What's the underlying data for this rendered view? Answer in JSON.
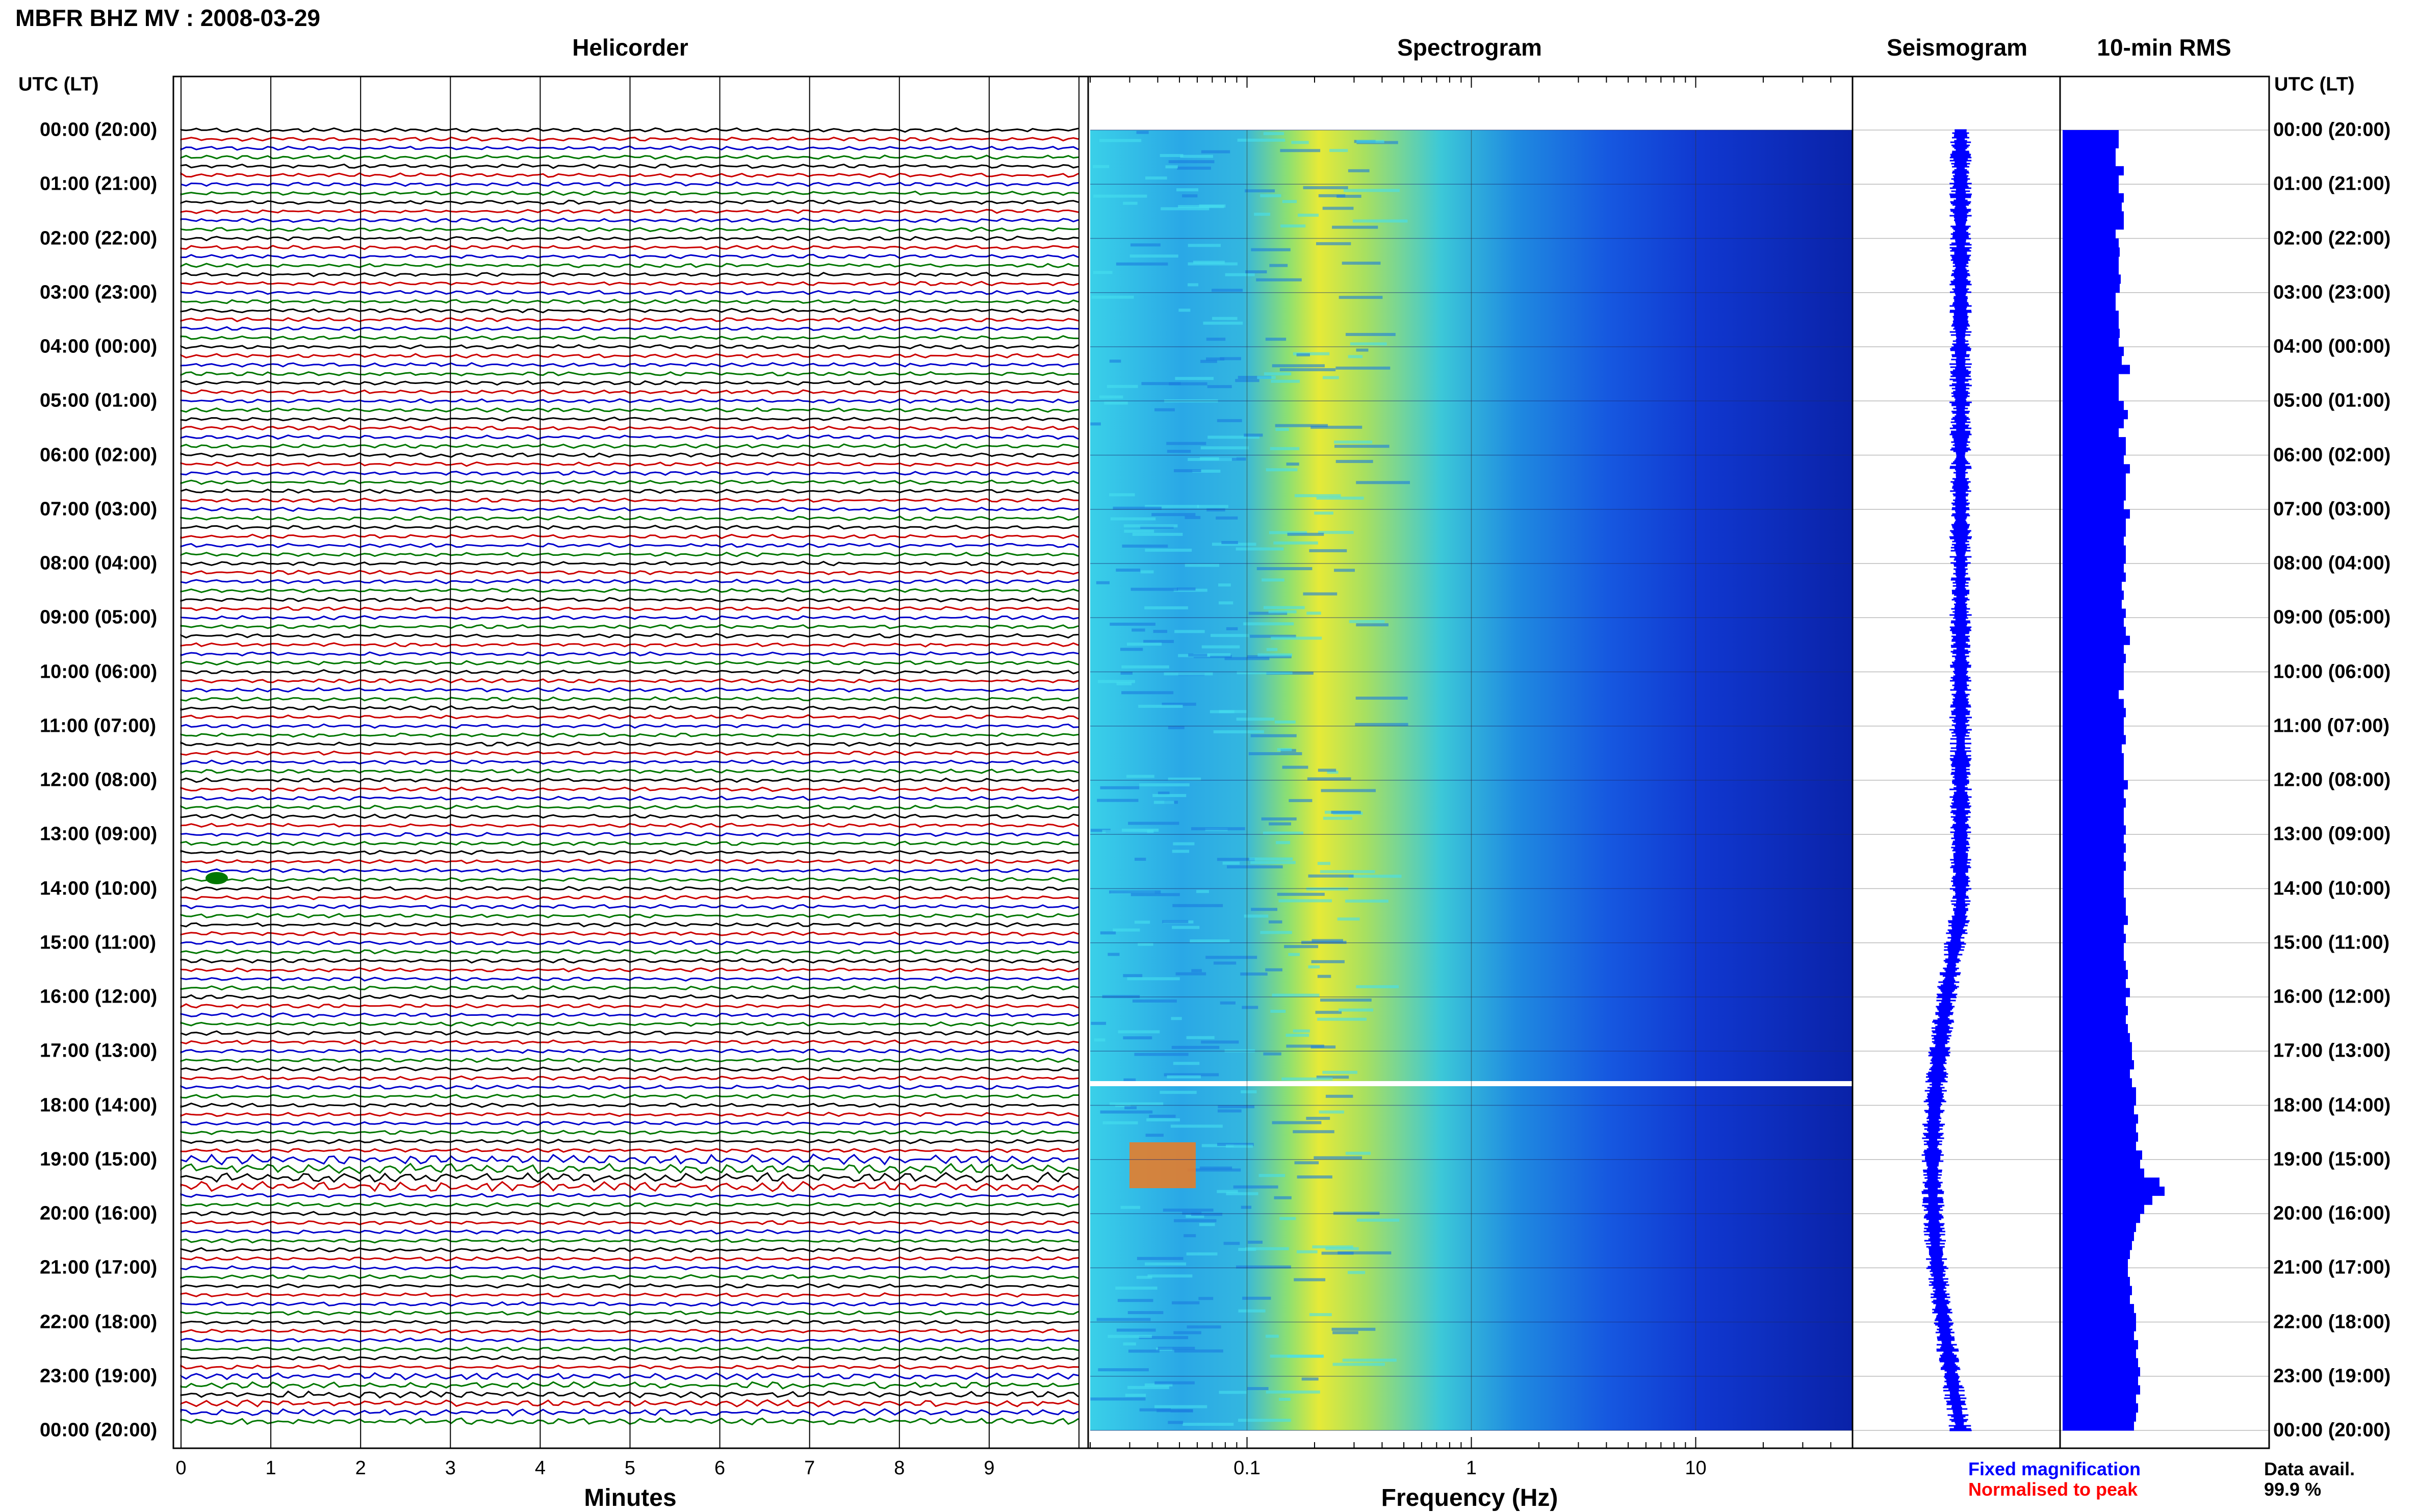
{
  "title": "MBFR BHZ MV : 2008-03-29",
  "panels": {
    "helicorder": "Helicorder",
    "spectrogram": "Spectrogram",
    "seismogram": "Seismogram",
    "rms": "10-min RMS"
  },
  "time_axis_label": "UTC (LT)",
  "time_labels": [
    "00:00 (20:00)",
    "01:00 (21:00)",
    "02:00 (22:00)",
    "03:00 (23:00)",
    "04:00 (00:00)",
    "05:00 (01:00)",
    "06:00 (02:00)",
    "07:00 (03:00)",
    "08:00 (04:00)",
    "09:00 (05:00)",
    "10:00 (06:00)",
    "11:00 (07:00)",
    "12:00 (08:00)",
    "13:00 (09:00)",
    "14:00 (10:00)",
    "15:00 (11:00)",
    "16:00 (12:00)",
    "17:00 (13:00)",
    "18:00 (14:00)",
    "19:00 (15:00)",
    "20:00 (16:00)",
    "21:00 (17:00)",
    "22:00 (18:00)",
    "23:00 (19:00)",
    "00:00 (20:00)"
  ],
  "helicorder_axis": {
    "label": "Minutes",
    "ticks": [
      "0",
      "1",
      "2",
      "3",
      "4",
      "5",
      "6",
      "7",
      "8",
      "9"
    ],
    "trace_colors": [
      "#000000",
      "#cc0000",
      "#0000cc",
      "#007700"
    ]
  },
  "spectrogram_axis": {
    "label": "Frequency (Hz)",
    "ticks": [
      "0.1",
      "1",
      "10"
    ],
    "scale": "log"
  },
  "legend": {
    "fixed": "Fixed magnification",
    "fixed_color": "#0000ff",
    "normalised": "Normalised to peak",
    "normalised_color": "#ff0000"
  },
  "data_avail": {
    "label": "Data avail.",
    "value": "99.9 %"
  },
  "chart_data": [
    {
      "type": "line",
      "title": "Helicorder",
      "xlabel": "Minutes",
      "xlim": [
        0,
        10
      ],
      "description_rows": "one 10-min trace per row, 144 rows, cycling black/red/blue/green"
    },
    {
      "type": "heatmap",
      "title": "Spectrogram",
      "xlabel": "Frequency (Hz)",
      "xscale": "log",
      "xlim": [
        0.02,
        50
      ],
      "ylabel": "UTC (LT)",
      "data_gap_utc": "17:40"
    },
    {
      "type": "bar",
      "title": "10-min RMS",
      "orientation": "horizontal",
      "color": "#0000ff",
      "values_relative": [
        0.55,
        0.55,
        0.52,
        0.52,
        0.6,
        0.55,
        0.55,
        0.6,
        0.58,
        0.6,
        0.6,
        0.52,
        0.55,
        0.56,
        0.55,
        0.55,
        0.57,
        0.56,
        0.52,
        0.52,
        0.55,
        0.55,
        0.56,
        0.55,
        0.6,
        0.58,
        0.66,
        0.55,
        0.55,
        0.55,
        0.6,
        0.64,
        0.6,
        0.55,
        0.62,
        0.62,
        0.6,
        0.66,
        0.62,
        0.62,
        0.62,
        0.6,
        0.66,
        0.62,
        0.62,
        0.6,
        0.62,
        0.62,
        0.6,
        0.62,
        0.58,
        0.6,
        0.58,
        0.62,
        0.6,
        0.62,
        0.66,
        0.6,
        0.62,
        0.6,
        0.6,
        0.6,
        0.55,
        0.6,
        0.62,
        0.6,
        0.6,
        0.62,
        0.58,
        0.6,
        0.6,
        0.6,
        0.64,
        0.6,
        0.62,
        0.6,
        0.6,
        0.62,
        0.6,
        0.62,
        0.6,
        0.62,
        0.6,
        0.6,
        0.6,
        0.62,
        0.62,
        0.64,
        0.6,
        0.62,
        0.6,
        0.6,
        0.62,
        0.64,
        0.62,
        0.66,
        0.62,
        0.64,
        0.62,
        0.64,
        0.66,
        0.68,
        0.68,
        0.7,
        0.66,
        0.68,
        0.72,
        0.72,
        0.7,
        0.74,
        0.72,
        0.74,
        0.72,
        0.78,
        0.76,
        0.8,
        0.95,
        1.0,
        0.88,
        0.8,
        0.76,
        0.72,
        0.7,
        0.68,
        0.66,
        0.64,
        0.64,
        0.66,
        0.68,
        0.66,
        0.7,
        0.72,
        0.72,
        0.7,
        0.74,
        0.72,
        0.74,
        0.76,
        0.74,
        0.76,
        0.72,
        0.74,
        0.72,
        0.7
      ]
    }
  ]
}
